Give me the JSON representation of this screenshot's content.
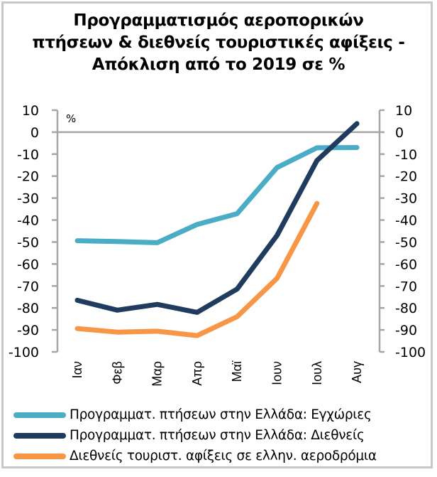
{
  "chart_data": {
    "type": "line",
    "title": [
      "Προγραμματισμός αεροπορικών",
      "πτήσεων & διεθνείς τουριστικές αφίξεις -",
      "Απόκλιση από το 2019 σε %"
    ],
    "unit_label": "%",
    "categories": [
      "Ιαν",
      "Φεβ",
      "Μαρ",
      "Απρ",
      "Μαϊ",
      "Ιουν",
      "Ιουλ",
      "Αυγ"
    ],
    "ylim": [
      -100,
      10
    ],
    "yticks": [
      10,
      0,
      -10,
      -20,
      -30,
      -40,
      -50,
      -60,
      -70,
      -80,
      -90,
      -100
    ],
    "secondary_yticks": [
      10,
      0,
      -10,
      -20,
      -30,
      -40,
      -50,
      -60,
      -70,
      -80,
      -90,
      -100
    ],
    "grid": false,
    "zero_line": true,
    "legend_position": "bottom",
    "series": [
      {
        "name": "Προγραμματ. πτήσεων στην Ελλάδα: Εγχώριες",
        "color": "#4BACC6",
        "values": [
          -49.4,
          -49.8,
          -50.3,
          -42,
          -37.1,
          -16.1,
          -7.1,
          -7.0
        ]
      },
      {
        "name": "Προγραμματ. πτήσεων στην Ελλάδα: Διεθνείς",
        "color": "#1F3B5E",
        "values": [
          -76.5,
          -81,
          -78.4,
          -82,
          -71.4,
          -47,
          -12.9,
          3.9
        ]
      },
      {
        "name": "Διεθνείς τουριστ. αφίξεις σε ελλην. αεροδρόμια",
        "color": "#F79646",
        "values": [
          -89.4,
          -91,
          -90.6,
          -92.6,
          -84,
          -66.5,
          -32.4,
          null
        ]
      }
    ]
  }
}
